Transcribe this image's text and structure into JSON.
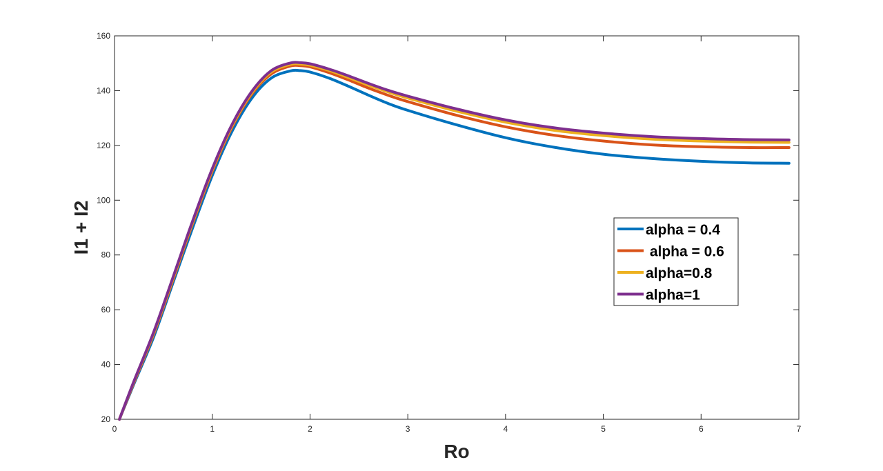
{
  "chart_data": {
    "type": "line",
    "title": "",
    "xlabel": "Ro",
    "ylabel": "I1 + I2",
    "xlim": [
      0,
      7
    ],
    "ylim": [
      20,
      160
    ],
    "xticks": [
      "0",
      "1",
      "2",
      "3",
      "4",
      "5",
      "6",
      "7"
    ],
    "yticks": [
      "20",
      "40",
      "60",
      "80",
      "100",
      "120",
      "140",
      "160"
    ],
    "grid": false,
    "legend_position": "right-middle",
    "x": [
      0.05,
      0.2,
      0.4,
      0.6,
      0.8,
      1.0,
      1.2,
      1.4,
      1.6,
      1.8,
      1.9,
      2.0,
      2.2,
      2.4,
      2.6,
      2.8,
      3.0,
      3.5,
      4.0,
      4.5,
      5.0,
      5.5,
      6.0,
      6.5,
      6.9
    ],
    "series": [
      {
        "name": "alpha = 0.4",
        "color": "#0072BD",
        "values": [
          20,
          33,
          50,
          70,
          90,
          109,
          125,
          137,
          144.5,
          147.2,
          147.3,
          146.8,
          144.5,
          141.5,
          138.3,
          135.3,
          132.8,
          127.5,
          122.8,
          119.3,
          116.8,
          115.2,
          114.2,
          113.6,
          113.5
        ]
      },
      {
        "name": " alpha = 0.6",
        "color": "#D95319",
        "values": [
          20,
          33.5,
          51,
          71,
          91.5,
          110.5,
          126.5,
          138.5,
          146,
          149,
          149.1,
          148.7,
          146.5,
          143.8,
          140.9,
          138.3,
          136,
          131,
          126.8,
          123.7,
          121.6,
          120.2,
          119.5,
          119.2,
          119.2
        ]
      },
      {
        "name": "alpha=0.8",
        "color": "#EDB120",
        "values": [
          20,
          33.8,
          51.4,
          71.5,
          92,
          111,
          127,
          139,
          146.7,
          149.6,
          149.7,
          149.3,
          147.3,
          144.7,
          142,
          139.5,
          137.3,
          132.5,
          128.5,
          125.5,
          123.6,
          122.3,
          121.6,
          121.2,
          121.1
        ]
      },
      {
        "name": "alpha=1",
        "color": "#7E2F8E",
        "values": [
          20,
          34,
          51.8,
          72,
          92.5,
          111.5,
          127.5,
          139.5,
          147.2,
          150.1,
          150.2,
          149.8,
          147.8,
          145.3,
          142.6,
          140.1,
          138,
          133.3,
          129.3,
          126.4,
          124.5,
          123.2,
          122.5,
          122.1,
          122
        ]
      }
    ]
  }
}
